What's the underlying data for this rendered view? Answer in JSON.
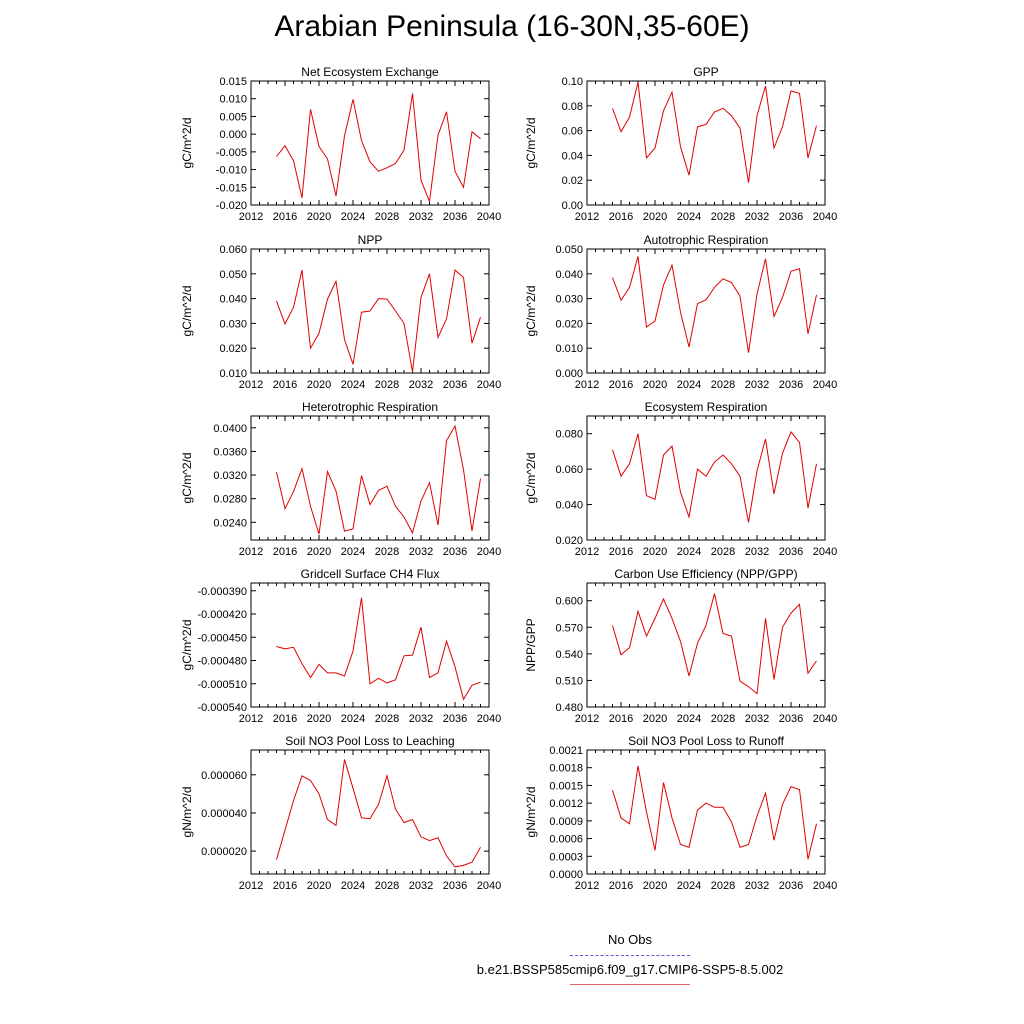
{
  "page": {
    "title": "Arabian Peninsula (16-30N,35-60E)"
  },
  "legend": {
    "obs_label": "No Obs",
    "obs_color": "#5b5bd6",
    "model_label": "b.e21.BSSP585cmip6.f09_g17.CMIP6-SSP5-8.5.002",
    "model_color": "#e06060"
  },
  "chart_data": [
    {
      "type": "line",
      "title": "Net Ecosystem Exchange",
      "ylabel": "gC/m^2/d",
      "xlim": [
        2012,
        2040
      ],
      "xticks": [
        2012,
        2016,
        2020,
        2024,
        2028,
        2032,
        2036,
        2040
      ],
      "ylim": [
        -0.02,
        0.015
      ],
      "yticks": [
        -0.02,
        -0.015,
        -0.01,
        -0.005,
        0.0,
        0.005,
        0.01,
        0.015
      ],
      "ytick_labels": [
        "-0.020",
        "-0.015",
        "-0.010",
        "-0.005",
        "0.000",
        "0.005",
        "0.010",
        "0.015"
      ],
      "color": "#e00000",
      "x": [
        2015,
        2016,
        2017,
        2018,
        2019,
        2020,
        2021,
        2022,
        2023,
        2024,
        2025,
        2026,
        2027,
        2028,
        2029,
        2030,
        2031,
        2032,
        2033,
        2034,
        2035,
        2036,
        2037,
        2038,
        2039
      ],
      "y": [
        -0.0063,
        -0.0033,
        -0.0075,
        -0.018,
        0.007,
        -0.0035,
        -0.007,
        -0.0175,
        -0.0005,
        0.0098,
        -0.0018,
        -0.0078,
        -0.0105,
        -0.0095,
        -0.0083,
        -0.0045,
        0.0115,
        -0.013,
        -0.019,
        -0.0003,
        0.0063,
        -0.0105,
        -0.015,
        0.0007,
        -0.0013
      ]
    },
    {
      "type": "line",
      "title": "GPP",
      "ylabel": "gC/m^2/d",
      "xlim": [
        2012,
        2040
      ],
      "xticks": [
        2012,
        2016,
        2020,
        2024,
        2028,
        2032,
        2036,
        2040
      ],
      "ylim": [
        0.0,
        0.1
      ],
      "yticks": [
        0.0,
        0.02,
        0.04,
        0.06,
        0.08,
        0.1
      ],
      "ytick_labels": [
        "0.00",
        "0.02",
        "0.04",
        "0.06",
        "0.08",
        "0.10"
      ],
      "color": "#e00000",
      "x": [
        2015,
        2016,
        2017,
        2018,
        2019,
        2020,
        2021,
        2022,
        2023,
        2024,
        2025,
        2026,
        2027,
        2028,
        2029,
        2030,
        2031,
        2032,
        2033,
        2034,
        2035,
        2036,
        2037,
        2038,
        2039
      ],
      "y": [
        0.078,
        0.059,
        0.071,
        0.099,
        0.038,
        0.046,
        0.076,
        0.091,
        0.047,
        0.024,
        0.063,
        0.065,
        0.075,
        0.078,
        0.072,
        0.062,
        0.018,
        0.072,
        0.096,
        0.046,
        0.063,
        0.092,
        0.09,
        0.038,
        0.064
      ]
    },
    {
      "type": "line",
      "title": "NPP",
      "ylabel": "gC/m^2/d",
      "xlim": [
        2012,
        2040
      ],
      "xticks": [
        2012,
        2016,
        2020,
        2024,
        2028,
        2032,
        2036,
        2040
      ],
      "ylim": [
        0.01,
        0.06
      ],
      "yticks": [
        0.01,
        0.02,
        0.03,
        0.04,
        0.05,
        0.06
      ],
      "ytick_labels": [
        "0.010",
        "0.020",
        "0.030",
        "0.040",
        "0.050",
        "0.060"
      ],
      "color": "#e00000",
      "x": [
        2015,
        2016,
        2017,
        2018,
        2019,
        2020,
        2021,
        2022,
        2023,
        2024,
        2025,
        2026,
        2027,
        2028,
        2029,
        2030,
        2031,
        2032,
        2033,
        2034,
        2035,
        2036,
        2037,
        2038,
        2039
      ],
      "y": [
        0.039,
        0.0298,
        0.0365,
        0.0515,
        0.02,
        0.026,
        0.0398,
        0.047,
        0.0235,
        0.0135,
        0.0345,
        0.035,
        0.04,
        0.0398,
        0.035,
        0.03,
        0.0105,
        0.0405,
        0.05,
        0.0243,
        0.0318,
        0.0515,
        0.0485,
        0.022,
        0.0325
      ]
    },
    {
      "type": "line",
      "title": "Autotrophic Respiration",
      "ylabel": "gC/m^2/d",
      "xlim": [
        2012,
        2040
      ],
      "xticks": [
        2012,
        2016,
        2020,
        2024,
        2028,
        2032,
        2036,
        2040
      ],
      "ylim": [
        0.0,
        0.05
      ],
      "yticks": [
        0.0,
        0.01,
        0.02,
        0.03,
        0.04,
        0.05
      ],
      "ytick_labels": [
        "0.000",
        "0.010",
        "0.020",
        "0.030",
        "0.040",
        "0.050"
      ],
      "color": "#e00000",
      "x": [
        2015,
        2016,
        2017,
        2018,
        2019,
        2020,
        2021,
        2022,
        2023,
        2024,
        2025,
        2026,
        2027,
        2028,
        2029,
        2030,
        2031,
        2032,
        2033,
        2034,
        2035,
        2036,
        2037,
        2038,
        2039
      ],
      "y": [
        0.0385,
        0.0293,
        0.0345,
        0.047,
        0.0185,
        0.021,
        0.0355,
        0.0435,
        0.0245,
        0.0105,
        0.028,
        0.0295,
        0.0345,
        0.038,
        0.0365,
        0.031,
        0.0082,
        0.0318,
        0.046,
        0.0228,
        0.0305,
        0.041,
        0.042,
        0.0158,
        0.0315
      ]
    },
    {
      "type": "line",
      "title": "Heterotrophic Respiration",
      "ylabel": "gC/m^2/d",
      "xlim": [
        2012,
        2040
      ],
      "xticks": [
        2012,
        2016,
        2020,
        2024,
        2028,
        2032,
        2036,
        2040
      ],
      "ylim": [
        0.021,
        0.042
      ],
      "yticks": [
        0.024,
        0.028,
        0.032,
        0.036,
        0.04
      ],
      "ytick_labels": [
        "0.0240",
        "0.0280",
        "0.0320",
        "0.0360",
        "0.0400"
      ],
      "color": "#e00000",
      "x": [
        2015,
        2016,
        2017,
        2018,
        2019,
        2020,
        2021,
        2022,
        2023,
        2024,
        2025,
        2026,
        2027,
        2028,
        2029,
        2030,
        2031,
        2032,
        2033,
        2034,
        2035,
        2036,
        2037,
        2038,
        2039
      ],
      "y": [
        0.0325,
        0.0263,
        0.0292,
        0.0331,
        0.0267,
        0.022,
        0.0326,
        0.0293,
        0.0225,
        0.0229,
        0.0319,
        0.027,
        0.0294,
        0.0301,
        0.0267,
        0.0249,
        0.0222,
        0.0276,
        0.0307,
        0.0235,
        0.0378,
        0.0403,
        0.0329,
        0.0225,
        0.0314
      ]
    },
    {
      "type": "line",
      "title": "Ecosystem Respiration",
      "ylabel": "gC/m^2/d",
      "xlim": [
        2012,
        2040
      ],
      "xticks": [
        2012,
        2016,
        2020,
        2024,
        2028,
        2032,
        2036,
        2040
      ],
      "ylim": [
        0.02,
        0.09
      ],
      "yticks": [
        0.02,
        0.04,
        0.06,
        0.08
      ],
      "ytick_labels": [
        "0.020",
        "0.040",
        "0.060",
        "0.080"
      ],
      "color": "#e00000",
      "x": [
        2015,
        2016,
        2017,
        2018,
        2019,
        2020,
        2021,
        2022,
        2023,
        2024,
        2025,
        2026,
        2027,
        2028,
        2029,
        2030,
        2031,
        2032,
        2033,
        2034,
        2035,
        2036,
        2037,
        2038,
        2039
      ],
      "y": [
        0.071,
        0.056,
        0.063,
        0.08,
        0.045,
        0.043,
        0.068,
        0.073,
        0.047,
        0.033,
        0.06,
        0.056,
        0.064,
        0.068,
        0.063,
        0.056,
        0.03,
        0.059,
        0.077,
        0.046,
        0.069,
        0.081,
        0.075,
        0.038,
        0.063
      ]
    },
    {
      "type": "line",
      "title": "Gridcell Surface CH4 Flux",
      "ylabel": "gC/m^2/d",
      "xlim": [
        2012,
        2040
      ],
      "xticks": [
        2012,
        2016,
        2020,
        2024,
        2028,
        2032,
        2036,
        2040
      ],
      "ylim": [
        -0.00054,
        -0.00038
      ],
      "yticks": [
        -0.00054,
        -0.00051,
        -0.00048,
        -0.00045,
        -0.00042,
        -0.00039
      ],
      "ytick_labels": [
        "-0.000540",
        "-0.000510",
        "-0.000480",
        "-0.000450",
        "-0.000420",
        "-0.000390"
      ],
      "color": "#e00000",
      "x": [
        2015,
        2016,
        2017,
        2018,
        2019,
        2020,
        2021,
        2022,
        2023,
        2024,
        2025,
        2026,
        2027,
        2028,
        2029,
        2030,
        2031,
        2032,
        2033,
        2034,
        2035,
        2036,
        2037,
        2038,
        2039
      ],
      "y": [
        -0.000462,
        -0.000465,
        -0.000463,
        -0.000484,
        -0.000502,
        -0.000485,
        -0.000496,
        -0.000496,
        -0.0005,
        -0.000468,
        -0.000399,
        -0.00051,
        -0.000503,
        -0.000509,
        -0.000505,
        -0.000474,
        -0.000473,
        -0.000437,
        -0.000502,
        -0.000496,
        -0.000455,
        -0.000488,
        -0.00053,
        -0.000512,
        -0.000508
      ]
    },
    {
      "type": "line",
      "title": "Carbon Use Efficiency (NPP/GPP)",
      "ylabel": "NPP/GPP",
      "xlim": [
        2012,
        2040
      ],
      "xticks": [
        2012,
        2016,
        2020,
        2024,
        2028,
        2032,
        2036,
        2040
      ],
      "ylim": [
        0.48,
        0.62
      ],
      "yticks": [
        0.48,
        0.51,
        0.54,
        0.57,
        0.6
      ],
      "ytick_labels": [
        "0.480",
        "0.510",
        "0.540",
        "0.570",
        "0.600"
      ],
      "color": "#e00000",
      "x": [
        2015,
        2016,
        2017,
        2018,
        2019,
        2020,
        2021,
        2022,
        2023,
        2024,
        2025,
        2026,
        2027,
        2028,
        2029,
        2030,
        2031,
        2032,
        2033,
        2034,
        2035,
        2036,
        2037,
        2038,
        2039
      ],
      "y": [
        0.572,
        0.539,
        0.547,
        0.588,
        0.56,
        0.58,
        0.602,
        0.58,
        0.554,
        0.515,
        0.552,
        0.572,
        0.608,
        0.563,
        0.56,
        0.509,
        0.503,
        0.495,
        0.58,
        0.511,
        0.57,
        0.586,
        0.596,
        0.518,
        0.532
      ]
    },
    {
      "type": "line",
      "title": "Soil NO3 Pool Loss to Leaching",
      "ylabel": "gN/m^2/d",
      "xlim": [
        2012,
        2040
      ],
      "xticks": [
        2012,
        2016,
        2020,
        2024,
        2028,
        2032,
        2036,
        2040
      ],
      "ylim": [
        8e-06,
        7.3e-05
      ],
      "yticks": [
        2e-05,
        4e-05,
        6e-05
      ],
      "ytick_labels": [
        "0.000020",
        "0.000040",
        "0.000060"
      ],
      "color": "#e00000",
      "x": [
        2015,
        2016,
        2017,
        2018,
        2019,
        2020,
        2021,
        2022,
        2023,
        2024,
        2025,
        2026,
        2027,
        2028,
        2029,
        2030,
        2031,
        2032,
        2033,
        2034,
        2035,
        2036,
        2037,
        2038,
        2039
      ],
      "y": [
        1.55e-05,
        3.1e-05,
        4.65e-05,
        5.95e-05,
        5.7e-05,
        5e-05,
        3.65e-05,
        3.35e-05,
        6.8e-05,
        5.3e-05,
        3.75e-05,
        3.7e-05,
        4.45e-05,
        5.95e-05,
        4.2e-05,
        3.5e-05,
        3.65e-05,
        2.75e-05,
        2.55e-05,
        2.7e-05,
        1.75e-05,
        1.17e-05,
        1.25e-05,
        1.42e-05,
        2.2e-05
      ]
    },
    {
      "type": "line",
      "title": "Soil NO3 Pool Loss to Runoff",
      "ylabel": "gN/m^2/d",
      "xlim": [
        2012,
        2040
      ],
      "xticks": [
        2012,
        2016,
        2020,
        2024,
        2028,
        2032,
        2036,
        2040
      ],
      "ylim": [
        0.0,
        0.0021
      ],
      "yticks": [
        0.0,
        0.0003,
        0.0006,
        0.0009,
        0.0012,
        0.0015,
        0.0018,
        0.0021
      ],
      "ytick_labels": [
        "0.0000",
        "0.0003",
        "0.0006",
        "0.0009",
        "0.0012",
        "0.0015",
        "0.0018",
        "0.0021"
      ],
      "color": "#e00000",
      "x": [
        2015,
        2016,
        2017,
        2018,
        2019,
        2020,
        2021,
        2022,
        2023,
        2024,
        2025,
        2026,
        2027,
        2028,
        2029,
        2030,
        2031,
        2032,
        2033,
        2034,
        2035,
        2036,
        2037,
        2038,
        2039
      ],
      "y": [
        0.00142,
        0.00095,
        0.00085,
        0.00183,
        0.00105,
        0.0004,
        0.00155,
        0.00095,
        0.0005,
        0.00045,
        0.00108,
        0.0012,
        0.00113,
        0.00113,
        0.00088,
        0.00045,
        0.0005,
        0.00098,
        0.00137,
        0.00057,
        0.00118,
        0.00148,
        0.00143,
        0.00025,
        0.00085
      ]
    }
  ]
}
